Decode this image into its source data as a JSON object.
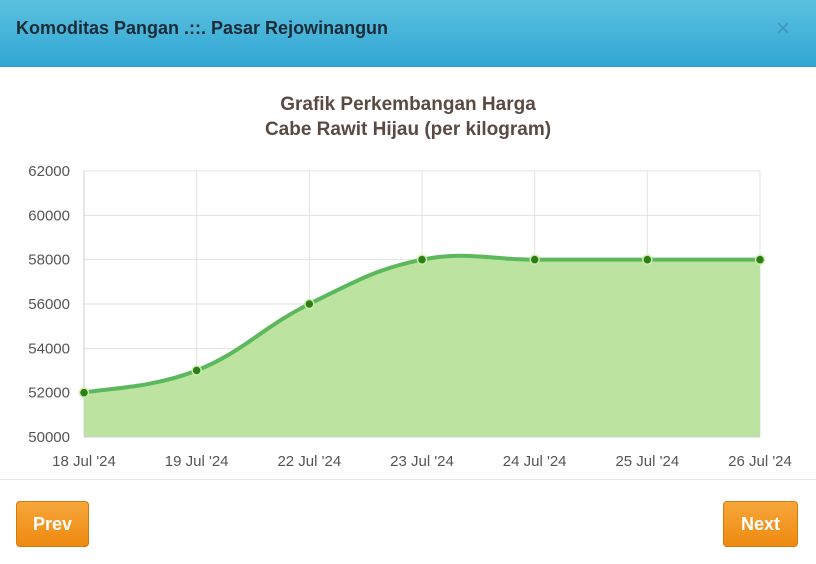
{
  "header": {
    "title": "Komoditas Pangan .::. Pasar Rejowinangun",
    "close_label": "×"
  },
  "footer": {
    "prev_label": "Prev",
    "next_label": "Next"
  },
  "chart_data": {
    "type": "area",
    "title": "Grafik Perkembangan Harga",
    "subtitle": "Cabe Rawit Hijau (per kilogram)",
    "categories": [
      "18 Jul '24",
      "19 Jul '24",
      "22 Jul '24",
      "23 Jul '24",
      "24 Jul '24",
      "25 Jul '24",
      "26 Jul '24"
    ],
    "values": [
      52000,
      53000,
      56000,
      58000,
      58000,
      58000,
      58000
    ],
    "yticks": [
      50000,
      52000,
      54000,
      56000,
      58000,
      60000,
      62000
    ],
    "ylim": [
      50000,
      62000
    ],
    "grid": true,
    "colors": {
      "line": "#5cb85c",
      "fill": "#bce4a0",
      "point": "#2e7d16"
    }
  }
}
